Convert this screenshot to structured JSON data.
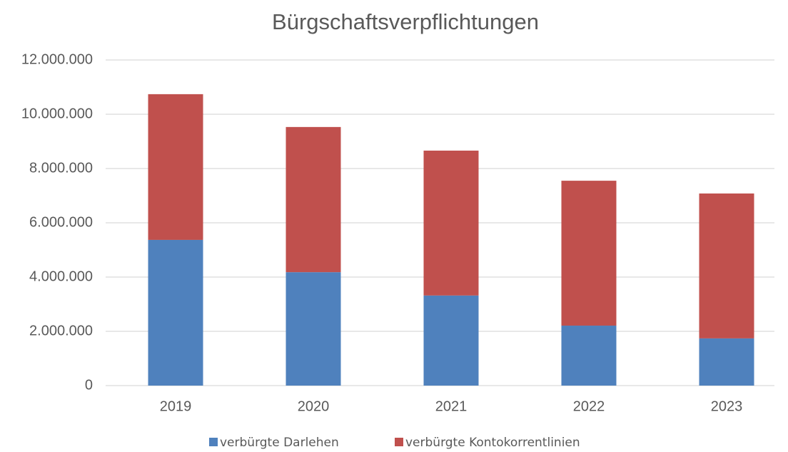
{
  "chart_data": {
    "type": "stacked_bar",
    "title": "Bürgschaftsverpflichtungen",
    "categories": [
      "2019",
      "2020",
      "2021",
      "2022",
      "2023"
    ],
    "series": [
      {
        "name": "verbürgte Darlehen",
        "color": "#4f81bd",
        "values": [
          5370000,
          4180000,
          3320000,
          2210000,
          1740000
        ]
      },
      {
        "name": "verbürgte Kontokorrentlinien",
        "color": "#c0504d",
        "values": [
          5370000,
          5350000,
          5340000,
          5340000,
          5340000
        ]
      }
    ],
    "ylim": [
      0,
      12000000
    ],
    "yticks": [
      0,
      {
        "value": 2000000,
        "label": "2.000.000"
      },
      {
        "value": 4000000,
        "label": "4.000.000"
      },
      {
        "value": 6000000,
        "label": "6.000.000"
      },
      {
        "value": 8000000,
        "label": "8.000.000"
      },
      {
        "value": 10000000,
        "label": "10.000.000"
      },
      {
        "value": 12000000,
        "label": "12.000.000"
      }
    ],
    "grid": true,
    "legend": "bottom"
  }
}
